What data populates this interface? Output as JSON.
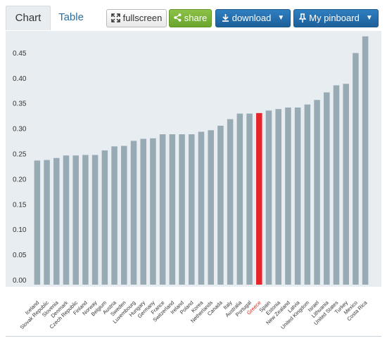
{
  "tabs": {
    "chart_label": "Chart",
    "table_label": "Table"
  },
  "toolbar": {
    "fullscreen_label": "fullscreen",
    "share_label": "share",
    "download_label": "download",
    "pinboard_label": "My pinboard",
    "fullscreen_icon": "fullscreen-icon",
    "share_icon": "share-icon",
    "download_icon": "download-icon",
    "pin_icon": "pin-icon"
  },
  "colors": {
    "bar": "#98aab4",
    "highlight_bar": "#e8242b",
    "highlight_label": "#d9261c",
    "label": "#333333",
    "plot_background": "#e7edf0",
    "share_button": "#7ab33a",
    "download_button": "#2672b3"
  },
  "chart_data": {
    "type": "bar",
    "title": "",
    "xlabel": "",
    "ylabel": "",
    "ylim": [
      0,
      0.5
    ],
    "yticks": [
      "0.00",
      "0.05",
      "0.10",
      "0.15",
      "0.20",
      "0.25",
      "0.30",
      "0.35",
      "0.40",
      "0.45"
    ],
    "grid": false,
    "highlight": "Greece",
    "categories": [
      "Iceland",
      "Slovak Republic",
      "Slovenia",
      "Denmark",
      "Czech Republic",
      "Finland",
      "Norway",
      "Belgium",
      "Austria",
      "Sweden",
      "Luxembourg",
      "Hungary",
      "Germany",
      "France",
      "Switzerland",
      "Ireland",
      "Poland",
      "Korea",
      "Netherlands",
      "Canada",
      "Italy",
      "Australia",
      "Portugal",
      "Greece",
      "Spain",
      "Estonia",
      "New Zealand",
      "Latvia",
      "United Kingdom",
      "Israel",
      "Lithuania",
      "United States",
      "Turkey",
      "Mexico",
      "Costa Rica"
    ],
    "values": [
      0.246,
      0.247,
      0.251,
      0.256,
      0.256,
      0.257,
      0.257,
      0.266,
      0.274,
      0.275,
      0.285,
      0.289,
      0.29,
      0.298,
      0.298,
      0.298,
      0.298,
      0.303,
      0.306,
      0.315,
      0.328,
      0.339,
      0.339,
      0.34,
      0.345,
      0.348,
      0.351,
      0.351,
      0.357,
      0.366,
      0.381,
      0.395,
      0.398,
      0.459,
      0.492
    ]
  }
}
